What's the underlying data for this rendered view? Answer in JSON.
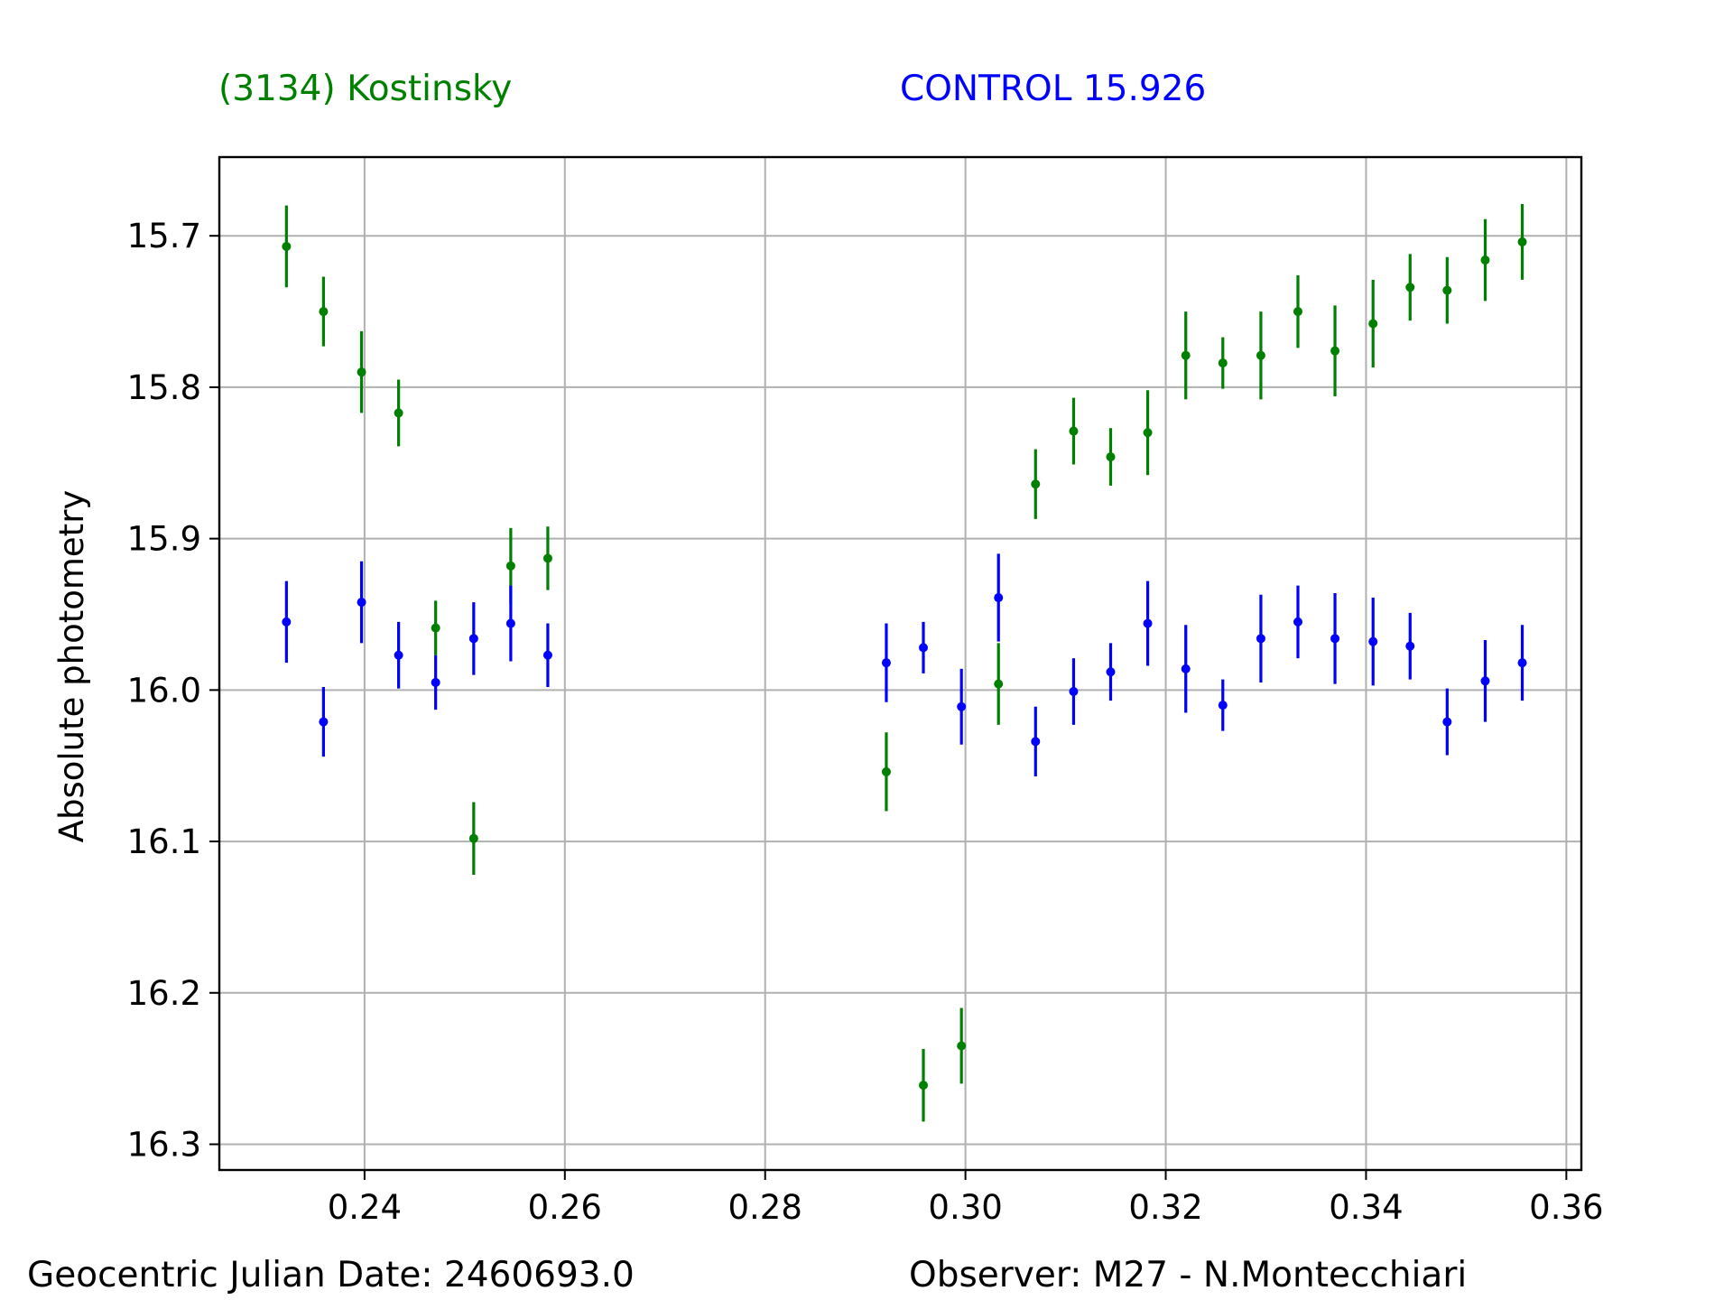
{
  "titles": {
    "target": "(3134) Kostinsky",
    "control": "CONTROL 15.926"
  },
  "footer": {
    "date": "Geocentric Julian Date: 2460693.0",
    "observer": "Observer: M27 - N.Montecchiari"
  },
  "colors": {
    "target": "#008000",
    "control": "#0000ff",
    "grid": "#b0b0b0",
    "axis": "#000000"
  },
  "chart_data": {
    "type": "scatter",
    "title": "",
    "xlabel": "",
    "ylabel": "Absolute photometry",
    "xlim": [
      0.2255,
      0.3615
    ],
    "ylim": [
      15.648,
      16.317
    ],
    "y_inverted": true,
    "grid": true,
    "xticks": [
      0.24,
      0.26,
      0.28,
      0.3,
      0.32,
      0.34,
      0.36
    ],
    "xtick_labels": [
      "0.24",
      "0.26",
      "0.28",
      "0.30",
      "0.32",
      "0.34",
      "0.36"
    ],
    "yticks": [
      15.7,
      15.8,
      15.9,
      16.0,
      16.1,
      16.2,
      16.3
    ],
    "ytick_labels": [
      "15.7",
      "15.8",
      "15.9",
      "16.0",
      "16.1",
      "16.2",
      "16.3"
    ],
    "series": [
      {
        "name": "(3134) Kostinsky",
        "color": "#008000",
        "x": [
          0.2322,
          0.2359,
          0.2397,
          0.2434,
          0.2471,
          0.2509,
          0.2546,
          0.2583,
          0.2921,
          0.2958,
          0.2996,
          0.3033,
          0.307,
          0.3108,
          0.3145,
          0.3182,
          0.322,
          0.3257,
          0.3295,
          0.3332,
          0.3369,
          0.3407,
          0.3444,
          0.3481,
          0.3519,
          0.3556
        ],
        "y": [
          15.707,
          15.75,
          15.79,
          15.817,
          15.959,
          16.098,
          15.918,
          15.913,
          16.054,
          16.261,
          16.235,
          15.996,
          15.864,
          15.829,
          15.846,
          15.83,
          15.779,
          15.784,
          15.779,
          15.75,
          15.776,
          15.758,
          15.734,
          15.736,
          15.716,
          15.704
        ],
        "yerr": [
          0.027,
          0.023,
          0.027,
          0.022,
          0.018,
          0.024,
          0.025,
          0.021,
          0.026,
          0.024,
          0.025,
          0.027,
          0.023,
          0.022,
          0.019,
          0.028,
          0.029,
          0.017,
          0.029,
          0.024,
          0.03,
          0.029,
          0.022,
          0.022,
          0.027,
          0.025
        ]
      },
      {
        "name": "CONTROL 15.926",
        "color": "#0000ff",
        "x": [
          0.2322,
          0.2359,
          0.2397,
          0.2434,
          0.2471,
          0.2509,
          0.2546,
          0.2583,
          0.2921,
          0.2958,
          0.2996,
          0.3033,
          0.307,
          0.3108,
          0.3145,
          0.3182,
          0.322,
          0.3257,
          0.3295,
          0.3332,
          0.3369,
          0.3407,
          0.3444,
          0.3481,
          0.3519,
          0.3556
        ],
        "y": [
          15.955,
          16.021,
          15.942,
          15.977,
          15.995,
          15.966,
          15.956,
          15.977,
          15.982,
          15.972,
          16.011,
          15.939,
          16.034,
          16.001,
          15.988,
          15.956,
          15.986,
          16.01,
          15.966,
          15.955,
          15.966,
          15.968,
          15.971,
          16.021,
          15.994,
          15.982
        ],
        "yerr": [
          0.027,
          0.023,
          0.027,
          0.022,
          0.018,
          0.024,
          0.025,
          0.021,
          0.026,
          0.017,
          0.025,
          0.029,
          0.023,
          0.022,
          0.019,
          0.028,
          0.029,
          0.017,
          0.029,
          0.024,
          0.03,
          0.029,
          0.022,
          0.022,
          0.027,
          0.025
        ]
      }
    ]
  }
}
